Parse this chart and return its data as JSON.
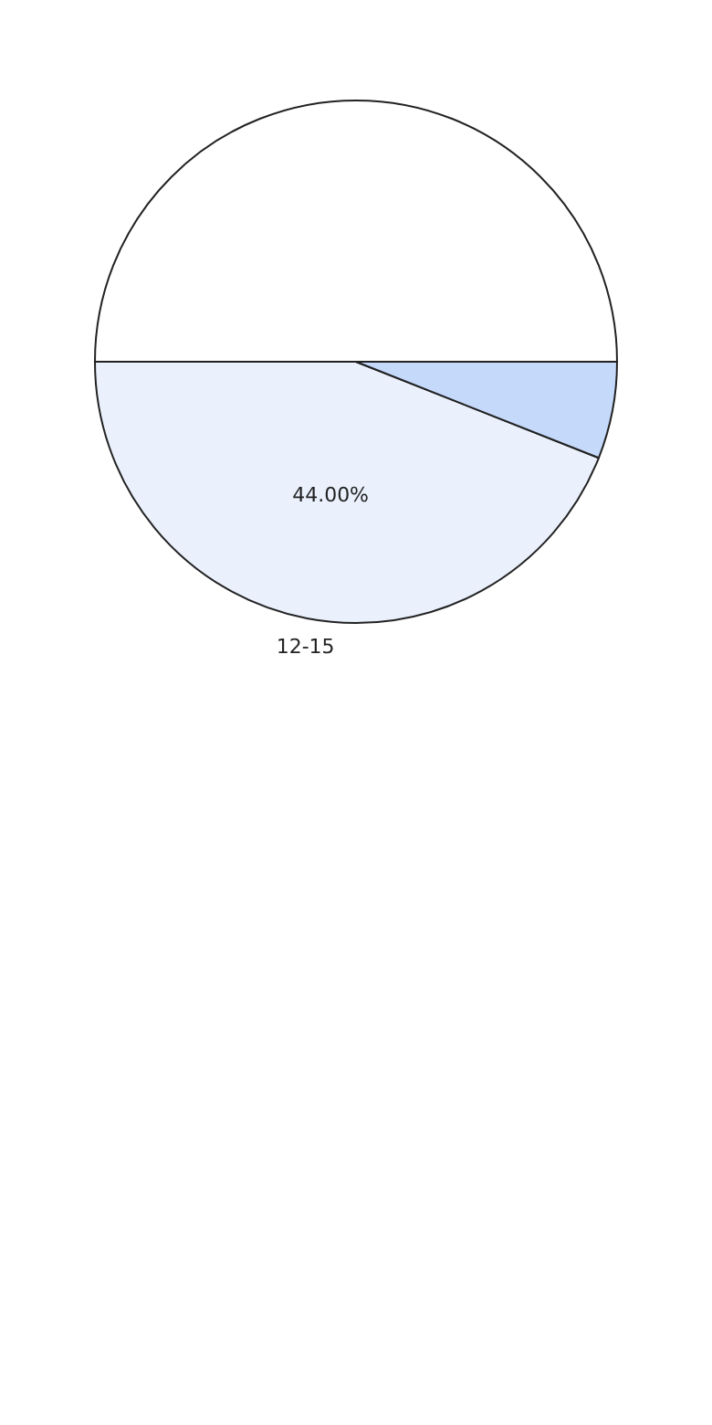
{
  "chart_data": {
    "type": "pie",
    "categories": [
      null,
      "12-15",
      null
    ],
    "values": [
      50,
      44,
      6
    ],
    "colors": [
      "#ffffff",
      "#eaf1fd",
      "#c5d9fb"
    ],
    "value_labels": [
      null,
      "44.00%",
      null
    ]
  }
}
